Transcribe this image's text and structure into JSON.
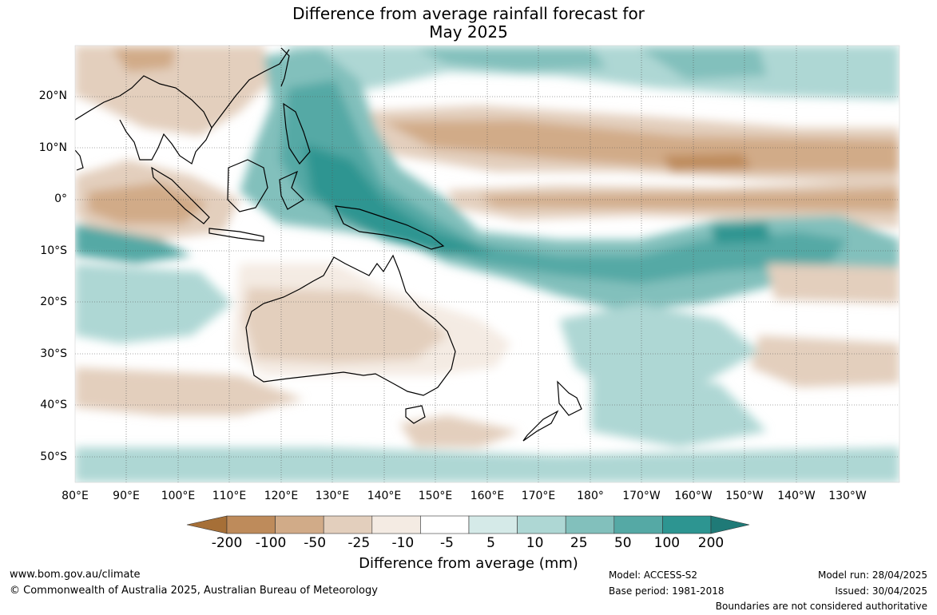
{
  "title": {
    "line1": "Difference from average rainfall forecast for",
    "line2": "May 2025"
  },
  "axes": {
    "latitudes": [
      "20°N",
      "10°N",
      "0°",
      "10°S",
      "20°S",
      "30°S",
      "40°S",
      "50°S"
    ],
    "longitudes": [
      "80°E",
      "90°E",
      "100°E",
      "110°E",
      "120°E",
      "130°E",
      "140°E",
      "150°E",
      "160°E",
      "170°E",
      "180°",
      "170°W",
      "160°W",
      "150°W",
      "140°W",
      "130°W"
    ]
  },
  "colorbar": {
    "title": "Difference from average (mm)",
    "ticks": [
      "-200",
      "-100",
      "-50",
      "-25",
      "-10",
      "-5",
      "5",
      "10",
      "25",
      "50",
      "100",
      "200"
    ],
    "colors": [
      "#a66f37",
      "#be8b5b",
      "#d1ab88",
      "#e3cfbd",
      "#f4ebe3",
      "#ffffff",
      "#d5eae8",
      "#aed7d4",
      "#82c0bc",
      "#55a9a5",
      "#2d9591",
      "#1f7a77"
    ]
  },
  "footer": {
    "website": "www.bom.gov.au/climate",
    "copyright": "© Commonwealth of Australia 2025, Australian Bureau of Meteorology",
    "model": "Model: ACCESS-S2",
    "base_period": "Base period: 1981-2018",
    "model_run": "Model run: 28/04/2025",
    "issued": "Issued: 30/04/2025",
    "disclaimer": "Boundaries are not considered authoritative"
  }
}
